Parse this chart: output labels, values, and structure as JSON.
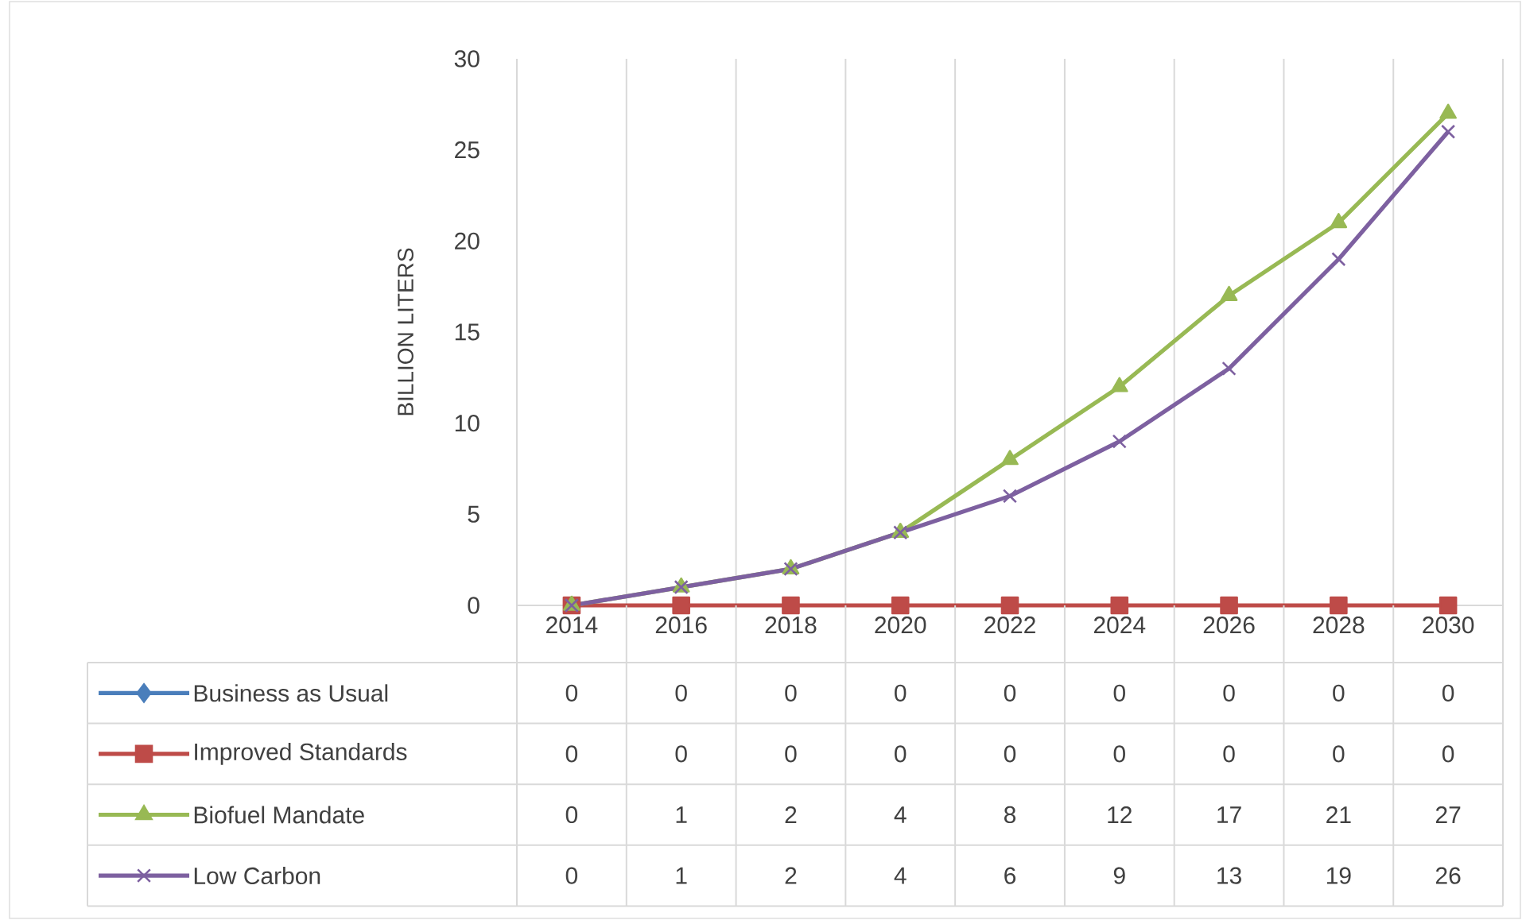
{
  "chart_data": {
    "type": "line",
    "ylabel": "BILLION LITERS",
    "categories": [
      "2014",
      "2016",
      "2018",
      "2020",
      "2022",
      "2024",
      "2026",
      "2028",
      "2030"
    ],
    "ylim": [
      0,
      30
    ],
    "yticks": [
      0,
      5,
      10,
      15,
      20,
      25,
      30
    ],
    "grid": "x",
    "legend": "bottom",
    "data_labels": true,
    "line_style": "solid",
    "series": [
      {
        "name": "Business as Usual",
        "color": "#4a7ebb",
        "marker": "diamond",
        "values": [
          null,
          null,
          null,
          null,
          null,
          null,
          null,
          null,
          null
        ],
        "value_labels": [
          "0",
          "0",
          "0",
          "0",
          "0",
          "0",
          "0",
          "0",
          "0"
        ]
      },
      {
        "name": "Improved Standards",
        "color": "#be4b48",
        "marker": "square",
        "values": [
          0,
          0,
          0,
          0,
          0,
          0,
          0,
          0,
          0
        ],
        "value_labels": [
          "0",
          "0",
          "0",
          "0",
          "0",
          "0",
          "0",
          "0",
          "0"
        ]
      },
      {
        "name": "Biofuel Mandate",
        "color": "#98b954",
        "marker": "triangle",
        "values": [
          0,
          1,
          2,
          4,
          8,
          12,
          17,
          21,
          27
        ]
      },
      {
        "name": "Low Carbon",
        "color": "#7d60a0",
        "marker": "cross",
        "values": [
          0,
          1,
          2,
          4,
          6,
          9,
          13,
          19,
          26
        ]
      }
    ]
  }
}
